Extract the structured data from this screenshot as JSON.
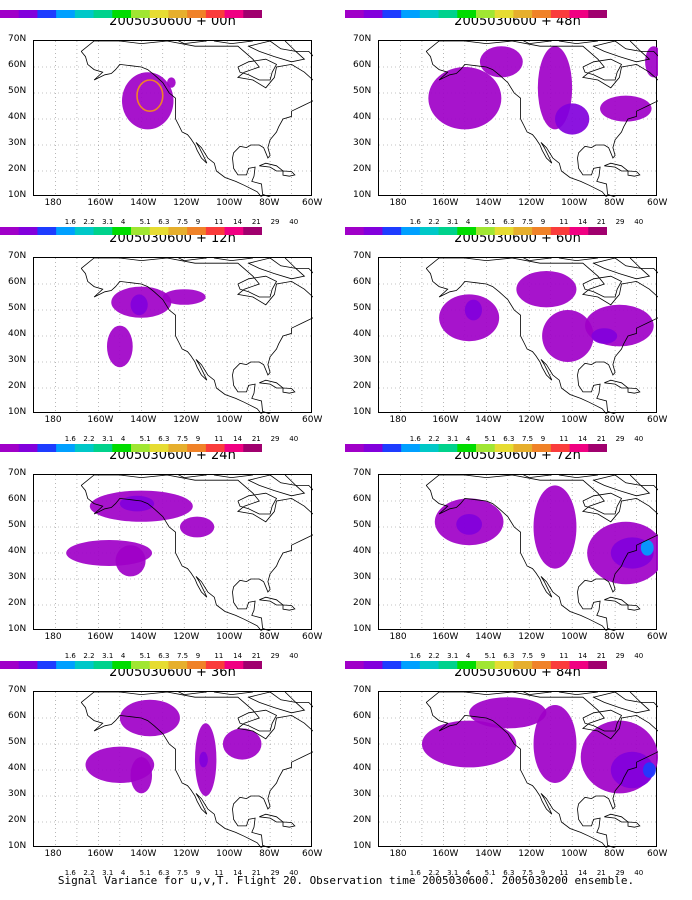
{
  "caption": "Signal Variance for u,v,T. Flight 20. Observation time 2005030600. 2005030200 ensemble.",
  "map": {
    "lat_ticks": [
      "70N",
      "60N",
      "50N",
      "40N",
      "30N",
      "20N",
      "10N"
    ],
    "lon_ticks": [
      "180",
      "160W",
      "140W",
      "120W",
      "100W",
      "80W",
      "60W"
    ]
  },
  "colorbar": {
    "labels": [
      "1.6",
      "2.2",
      "3.1",
      "4",
      "5.1",
      "6.3",
      "7.5",
      "9",
      "11",
      "14",
      "21",
      "29",
      "40"
    ],
    "colors": [
      "#a000c8",
      "#8200dc",
      "#1e3cff",
      "#00a0ff",
      "#00c8c8",
      "#00d28c",
      "#00dc00",
      "#a0e632",
      "#e6dc32",
      "#e6af2d",
      "#f08228",
      "#fa3c3c",
      "#f00082",
      "#a0006e"
    ]
  },
  "chart_data": [
    {
      "type": "heatmap",
      "title": "2005030600 + 00h",
      "units_label": "Signal Variance",
      "blobs": [
        {
          "lon": -137,
          "lat": 47,
          "rx": 12,
          "ry": 11,
          "level": 1
        },
        {
          "lon": -136,
          "lat": 49,
          "rx": 6,
          "ry": 6,
          "level": 11
        },
        {
          "lon": -126,
          "lat": 54,
          "rx": 2,
          "ry": 2,
          "level": 1
        }
      ]
    },
    {
      "type": "heatmap",
      "title": "2005030600 + 12h",
      "blobs": [
        {
          "lon": -140,
          "lat": 53,
          "rx": 14,
          "ry": 6,
          "level": 1
        },
        {
          "lon": -141,
          "lat": 52,
          "rx": 4,
          "ry": 4,
          "level": 2
        },
        {
          "lon": -150,
          "lat": 36,
          "rx": 6,
          "ry": 8,
          "level": 1
        },
        {
          "lon": -120,
          "lat": 55,
          "rx": 10,
          "ry": 3,
          "level": 1
        }
      ]
    },
    {
      "type": "heatmap",
      "title": "2005030600 + 24h",
      "blobs": [
        {
          "lon": -140,
          "lat": 58,
          "rx": 24,
          "ry": 6,
          "level": 1
        },
        {
          "lon": -142,
          "lat": 59,
          "rx": 8,
          "ry": 3,
          "level": 2
        },
        {
          "lon": -155,
          "lat": 40,
          "rx": 20,
          "ry": 5,
          "level": 1
        },
        {
          "lon": -145,
          "lat": 37,
          "rx": 7,
          "ry": 6,
          "level": 1
        },
        {
          "lon": -114,
          "lat": 50,
          "rx": 8,
          "ry": 4,
          "level": 1
        }
      ]
    },
    {
      "type": "heatmap",
      "title": "2005030600 + 36h",
      "blobs": [
        {
          "lon": -136,
          "lat": 60,
          "rx": 14,
          "ry": 7,
          "level": 1
        },
        {
          "lon": -150,
          "lat": 42,
          "rx": 16,
          "ry": 7,
          "level": 1
        },
        {
          "lon": -140,
          "lat": 38,
          "rx": 5,
          "ry": 7,
          "level": 1
        },
        {
          "lon": -110,
          "lat": 44,
          "rx": 5,
          "ry": 14,
          "level": 1
        },
        {
          "lon": -111,
          "lat": 44,
          "rx": 2,
          "ry": 3,
          "level": 2
        },
        {
          "lon": -93,
          "lat": 50,
          "rx": 9,
          "ry": 6,
          "level": 1
        }
      ]
    },
    {
      "type": "heatmap",
      "title": "2005030600 + 48h",
      "blobs": [
        {
          "lon": -150,
          "lat": 48,
          "rx": 17,
          "ry": 12,
          "level": 1
        },
        {
          "lon": -133,
          "lat": 62,
          "rx": 10,
          "ry": 6,
          "level": 1
        },
        {
          "lon": -108,
          "lat": 52,
          "rx": 8,
          "ry": 16,
          "level": 1
        },
        {
          "lon": -100,
          "lat": 40,
          "rx": 8,
          "ry": 6,
          "level": 2
        },
        {
          "lon": -75,
          "lat": 44,
          "rx": 12,
          "ry": 5,
          "level": 1
        },
        {
          "lon": -62,
          "lat": 62,
          "rx": 4,
          "ry": 6,
          "level": 1
        }
      ]
    },
    {
      "type": "heatmap",
      "title": "2005030600 + 60h",
      "blobs": [
        {
          "lon": -148,
          "lat": 47,
          "rx": 14,
          "ry": 9,
          "level": 1
        },
        {
          "lon": -146,
          "lat": 50,
          "rx": 4,
          "ry": 4,
          "level": 2
        },
        {
          "lon": -112,
          "lat": 58,
          "rx": 14,
          "ry": 7,
          "level": 1
        },
        {
          "lon": -102,
          "lat": 40,
          "rx": 12,
          "ry": 10,
          "level": 1
        },
        {
          "lon": -78,
          "lat": 44,
          "rx": 16,
          "ry": 8,
          "level": 1
        },
        {
          "lon": -85,
          "lat": 40,
          "rx": 6,
          "ry": 3,
          "level": 2
        }
      ]
    },
    {
      "type": "heatmap",
      "title": "2005030600 + 72h",
      "blobs": [
        {
          "lon": -148,
          "lat": 52,
          "rx": 16,
          "ry": 9,
          "level": 1
        },
        {
          "lon": -148,
          "lat": 51,
          "rx": 6,
          "ry": 4,
          "level": 2
        },
        {
          "lon": -108,
          "lat": 50,
          "rx": 10,
          "ry": 16,
          "level": 1
        },
        {
          "lon": -75,
          "lat": 40,
          "rx": 18,
          "ry": 12,
          "level": 1
        },
        {
          "lon": -72,
          "lat": 40,
          "rx": 10,
          "ry": 6,
          "level": 2
        },
        {
          "lon": -65,
          "lat": 42,
          "rx": 3,
          "ry": 3,
          "level": 4
        }
      ]
    },
    {
      "type": "heatmap",
      "title": "2005030600 + 84h",
      "blobs": [
        {
          "lon": -148,
          "lat": 50,
          "rx": 22,
          "ry": 9,
          "level": 1
        },
        {
          "lon": -130,
          "lat": 62,
          "rx": 18,
          "ry": 6,
          "level": 1
        },
        {
          "lon": -108,
          "lat": 50,
          "rx": 10,
          "ry": 15,
          "level": 1
        },
        {
          "lon": -78,
          "lat": 45,
          "rx": 18,
          "ry": 14,
          "level": 1
        },
        {
          "lon": -72,
          "lat": 40,
          "rx": 10,
          "ry": 7,
          "level": 2
        },
        {
          "lon": -64,
          "lat": 40,
          "rx": 3,
          "ry": 3,
          "level": 3
        }
      ]
    }
  ]
}
